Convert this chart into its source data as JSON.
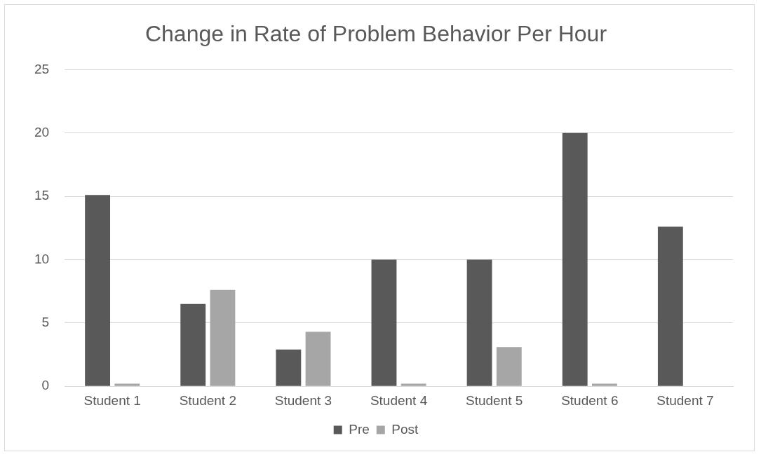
{
  "chart_data": {
    "type": "bar",
    "title": "Change in Rate of Problem Behavior Per Hour",
    "categories": [
      "Student 1",
      "Student 2",
      "Student 3",
      "Student 4",
      "Student 5",
      "Student 6",
      "Student 7"
    ],
    "series": [
      {
        "name": "Pre",
        "color": "#595959",
        "values": [
          15.1,
          6.5,
          2.9,
          10,
          10,
          20,
          12.6
        ]
      },
      {
        "name": "Post",
        "color": "#a6a6a6",
        "values": [
          0.2,
          7.6,
          4.3,
          0.2,
          3.1,
          0.2,
          0
        ]
      }
    ],
    "ylim": [
      0,
      25
    ],
    "yticks": [
      0,
      5,
      10,
      15,
      20,
      25
    ],
    "grid": "y",
    "legend": "bottom"
  }
}
